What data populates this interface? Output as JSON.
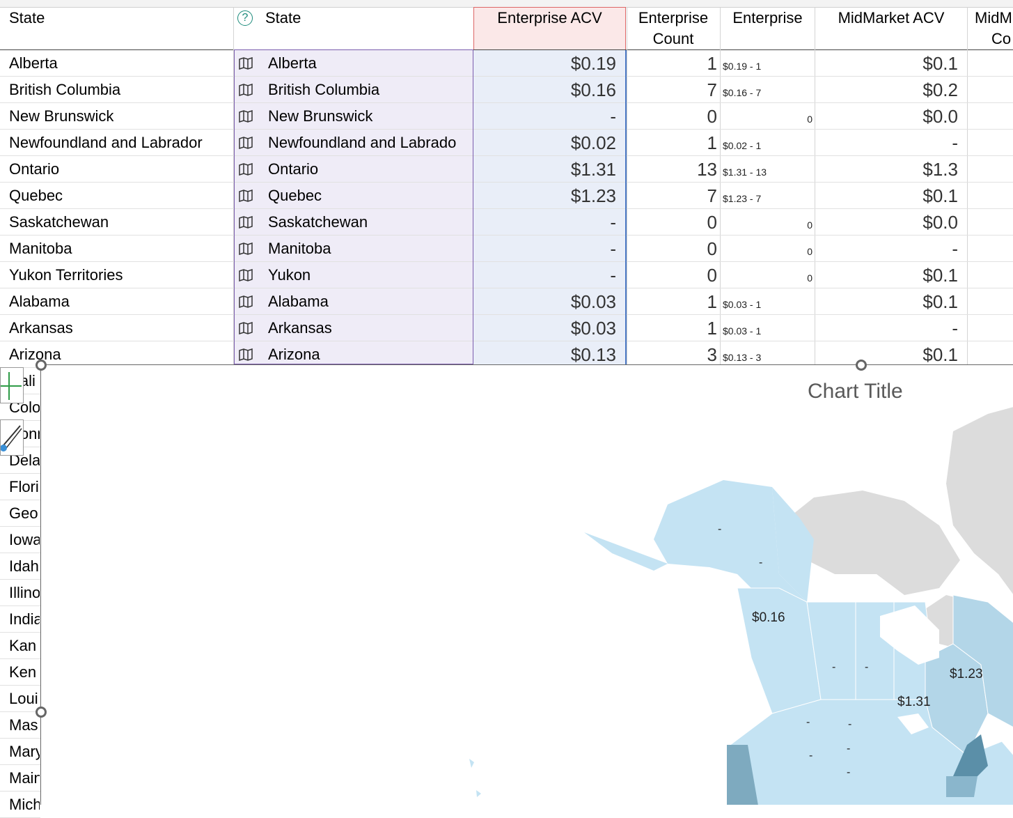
{
  "headers": {
    "state": "State",
    "geo_state": "State",
    "enterprise_acv": "Enterprise ACV",
    "enterprise_count_line1": "Enterprise",
    "enterprise_count_line2": "Count",
    "enterprise": "Enterprise",
    "midmarket_acv": "MidMarket ACV",
    "midmarket_count_line1": "MidM",
    "midmarket_count_line2": "Co"
  },
  "rows": [
    {
      "state": "Alberta",
      "geo": "Alberta",
      "acv": "$0.19",
      "count": "1",
      "label": "$0.19 - 1",
      "mm": "$0.1"
    },
    {
      "state": "British Columbia",
      "geo": "British Columbia",
      "acv": "$0.16",
      "count": "7",
      "label": "$0.16 - 7",
      "mm": "$0.2"
    },
    {
      "state": "New Brunswick",
      "geo": "New Brunswick",
      "acv": "-",
      "count": "0",
      "label": "0",
      "mm": "$0.0"
    },
    {
      "state": "Newfoundland and Labrador",
      "geo": "Newfoundland and Labrado",
      "acv": "$0.02",
      "count": "1",
      "label": "$0.02 - 1",
      "mm": "-"
    },
    {
      "state": "Ontario",
      "geo": "Ontario",
      "acv": "$1.31",
      "count": "13",
      "label": "$1.31 - 13",
      "mm": "$1.3"
    },
    {
      "state": "Quebec",
      "geo": "Quebec",
      "acv": "$1.23",
      "count": "7",
      "label": "$1.23 - 7",
      "mm": "$0.1"
    },
    {
      "state": "Saskatchewan",
      "geo": "Saskatchewan",
      "acv": "-",
      "count": "0",
      "label": "0",
      "mm": "$0.0"
    },
    {
      "state": "Manitoba",
      "geo": "Manitoba",
      "acv": "-",
      "count": "0",
      "label": "0",
      "mm": "-"
    },
    {
      "state": "Yukon Territories",
      "geo": "Yukon",
      "acv": "-",
      "count": "0",
      "label": "0",
      "mm": "$0.1"
    },
    {
      "state": "Alabama",
      "geo": "Alabama",
      "acv": "$0.03",
      "count": "1",
      "label": "$0.03 - 1",
      "mm": "$0.1"
    },
    {
      "state": "Arkansas",
      "geo": "Arkansas",
      "acv": "$0.03",
      "count": "1",
      "label": "$0.03 - 1",
      "mm": "-"
    },
    {
      "state": "Arizona",
      "geo": "Arizona",
      "acv": "$0.13",
      "count": "3",
      "label": "$0.13 - 3",
      "mm": "$0.1"
    }
  ],
  "lower_rows": [
    "Cali",
    "Colo",
    "Conn",
    "Dela",
    "Flori",
    "Geo",
    "Iowa",
    "Idah",
    "Illino",
    "India",
    "Kan",
    "Ken",
    "Loui",
    "Mas",
    "Mary",
    "Main",
    "Mich"
  ],
  "chart": {
    "title": "Chart Title",
    "labels": {
      "bc": "$0.16",
      "ontario": "$1.31",
      "quebec": "$1.23",
      "dash": "-"
    },
    "colors": {
      "land_gray": "#dcdcdc",
      "light": "#c4e3f3",
      "mid": "#a9cde2",
      "dark": "#5b8fa8",
      "water": "#ffffff"
    }
  }
}
